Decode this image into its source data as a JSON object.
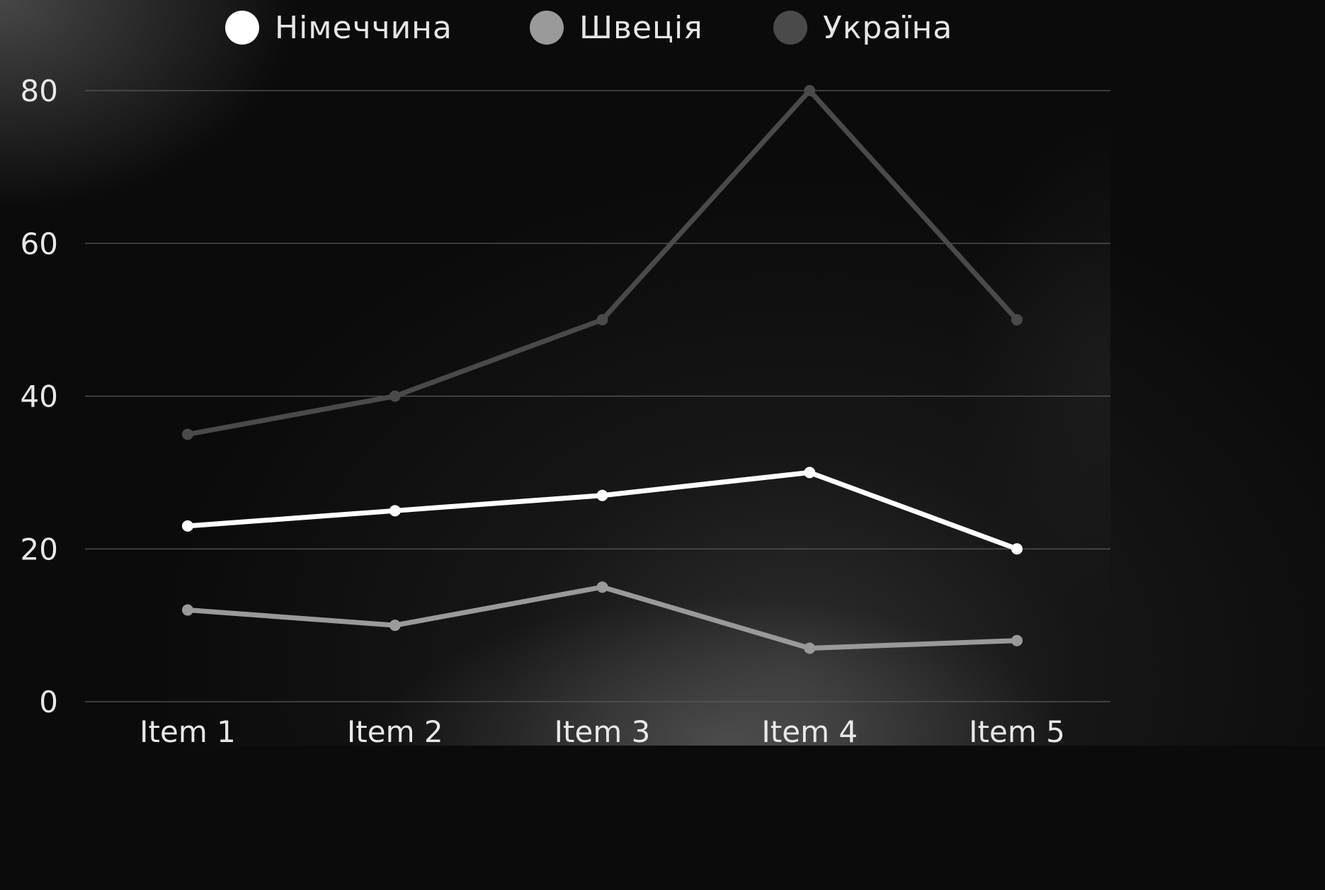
{
  "chart_data": {
    "type": "line",
    "categories": [
      "Item 1",
      "Item 2",
      "Item 3",
      "Item 4",
      "Item 5"
    ],
    "series": [
      {
        "name": "Німеччина",
        "values": [
          23,
          25,
          27,
          30,
          20
        ],
        "color": "#ffffff"
      },
      {
        "name": "Швеція",
        "values": [
          12,
          10,
          15,
          7,
          8
        ],
        "color": "#9a9a9a"
      },
      {
        "name": "Україна",
        "values": [
          35,
          40,
          50,
          80,
          50
        ],
        "color": "#4a4a4a"
      }
    ],
    "yticks": [
      0,
      20,
      40,
      60,
      80
    ],
    "ylim": [
      0,
      80
    ],
    "grid": true,
    "legend_position": "top"
  }
}
